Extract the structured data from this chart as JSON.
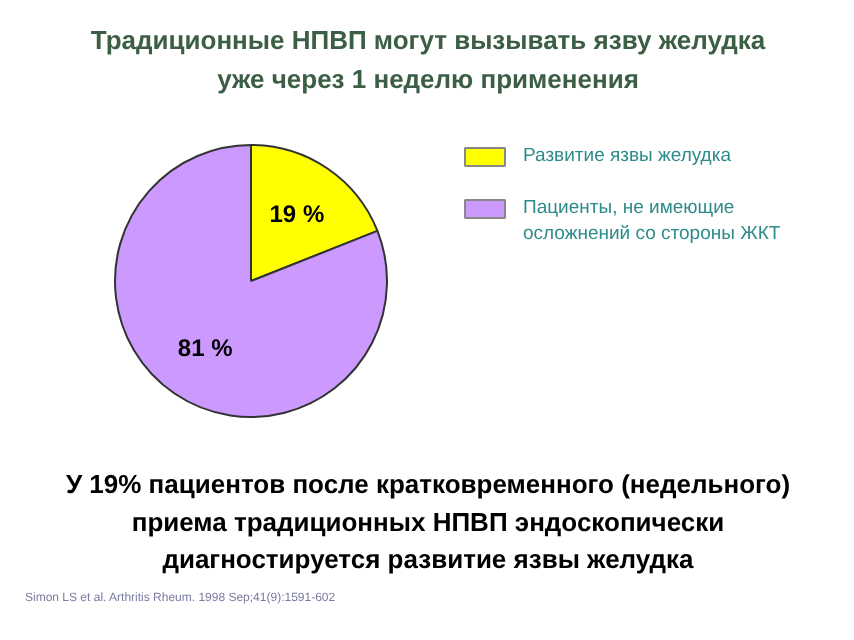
{
  "chart_data": {
    "type": "pie",
    "title": "Традиционные НПВП могут вызывать язву желудка\nуже через 1 неделю применения",
    "categories": [
      "Развитие язвы желудка",
      "Пациенты, не имеющие\nосложнений со стороны ЖКТ"
    ],
    "values": [
      19,
      81
    ],
    "colors": [
      "#ffff00",
      "#cc99ff"
    ],
    "value_labels": [
      "19 %",
      "81 %"
    ],
    "legend": "right",
    "annotations": [
      "У 19% пациентов после кратковременного (недельного)\nприема традиционных НПВП эндоскопически\nдиагностируется развитие язвы желудка",
      "Simon LS et al. Arthritis Rheum. 1998 Sep;41(9):1591-602"
    ]
  }
}
